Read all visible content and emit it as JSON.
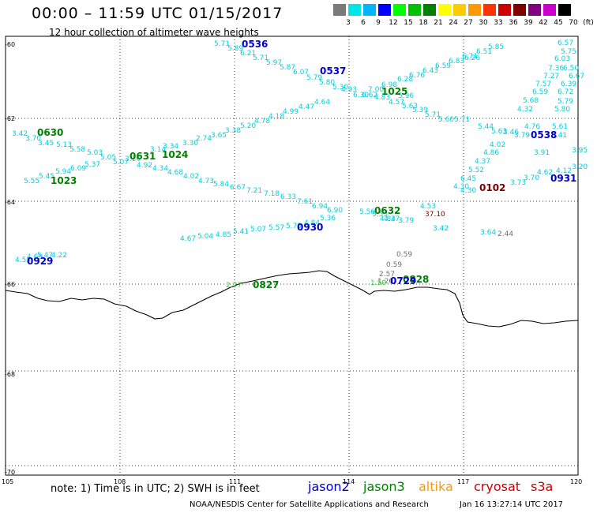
{
  "header": {
    "title": "00:00 – 11:59 UTC 01/15/2017",
    "subtitle": "12 hour collection of altimeter wave heights"
  },
  "colorscale": {
    "ticks": [
      "3",
      "6",
      "9",
      "12",
      "15",
      "18",
      "21",
      "24",
      "27",
      "30",
      "33",
      "36",
      "39",
      "42",
      "45",
      "70",
      "(ft)"
    ],
    "colors": [
      "#7a7a7a",
      "#00e5e5",
      "#00b4ff",
      "#0000ff",
      "#00ff00",
      "#00c000",
      "#008000",
      "#ffff00",
      "#ffcc00",
      "#ff9900",
      "#ff3300",
      "#cc0000",
      "#800000",
      "#800080",
      "#cc00cc",
      "#000000"
    ]
  },
  "axes": {
    "lat_labels": [
      "-60",
      "-62",
      "-64",
      "-66",
      "-68",
      "-70"
    ],
    "lon_labels": [
      "105",
      "108",
      "111",
      "114",
      "117",
      "120"
    ]
  },
  "footer": {
    "note": "note: 1) Time is in UTC; 2) SWH is in feet",
    "sats": [
      {
        "name": "jason2",
        "color": "#0000cc"
      },
      {
        "name": "jason3",
        "color": "#008000"
      },
      {
        "name": "altika",
        "color": "#ff9900"
      },
      {
        "name": "cryosat",
        "color": "#cc0000"
      },
      {
        "name": "s3a",
        "color": "#cc0000"
      }
    ],
    "credit": "NOAA/NESDIS Center for Satellite Applications and Research",
    "timestamp": "Jan 16 13:27:14 UTC 2017"
  },
  "passes": [
    {
      "id": "0536",
      "color": "#0000cc"
    },
    {
      "id": "0537",
      "color": "#0000cc"
    },
    {
      "id": "1025",
      "color": "#008000"
    },
    {
      "id": "0630",
      "color": "#008000"
    },
    {
      "id": "0631",
      "color": "#008000"
    },
    {
      "id": "1024",
      "color": "#008000"
    },
    {
      "id": "1023",
      "color": "#008000"
    },
    {
      "id": "0538",
      "color": "#0000cc"
    },
    {
      "id": "0102",
      "color": "#800000"
    },
    {
      "id": "0931",
      "color": "#0000cc"
    },
    {
      "id": "0632",
      "color": "#008000"
    },
    {
      "id": "0930",
      "color": "#0000cc"
    },
    {
      "id": "0929",
      "color": "#0000cc"
    },
    {
      "id": "0827",
      "color": "#008000"
    },
    {
      "id": "0828",
      "color": "#008000"
    },
    {
      "id": "0729",
      "color": "#0000cc"
    }
  ],
  "observations": {
    "cyan": [
      "5.71",
      "5.89",
      "6.21",
      "5.71",
      "5.97",
      "5.87",
      "6.07",
      "5.79",
      "5.80",
      "5.30",
      "6.28",
      "6.76",
      "6.43",
      "6.59",
      "6.83",
      "6.71",
      "6.51",
      "5.85",
      "6.26",
      "6.57",
      "5.75",
      "6.03",
      "7.36",
      "6.50",
      "7.27",
      "6.67",
      "7.57",
      "6.59",
      "6.72",
      "6.39",
      "5.68",
      "5.79",
      "4.32",
      "5.80",
      "5.61",
      "4.76",
      "5.41",
      "3.46",
      "3.79",
      "4.02",
      "3.91",
      "4.86",
      "3.95",
      "4.37",
      "3.20",
      "5.52",
      "4.12",
      "6.45",
      "4.62",
      "4.30",
      "4.30",
      "3.73",
      "3.70",
      "4.93",
      "7.00",
      "6.98",
      "4.83",
      "6.30",
      "6.62",
      "5.96",
      "4.57",
      "5.63",
      "5.39",
      "5.71",
      "5.60",
      "5.71",
      "5.44",
      "5.63",
      "3.42",
      "3.70",
      "3.45",
      "5.13",
      "5.58",
      "5.03",
      "5.05",
      "5.07",
      "3.16",
      "3.34",
      "3.30",
      "3.14",
      "2.74",
      "3.65",
      "3.38",
      "5.20",
      "4.78",
      "4.18",
      "4.99",
      "4.47",
      "4.64",
      "5.55",
      "5.45",
      "5.94",
      "6.09",
      "5.37",
      "4.92",
      "4.34",
      "4.68",
      "4.02",
      "4.73",
      "5.84",
      "6.67",
      "7.21",
      "7.18",
      "6.33",
      "7.61",
      "6.94",
      "6.90",
      "5.56",
      "5.53",
      "4.84",
      "4.37",
      "3.79",
      "4.53",
      "3.42",
      "4.67",
      "5.04",
      "4.85",
      "5.41",
      "5.07",
      "5.57",
      "5.75",
      "5.36",
      "4.84",
      "4.55",
      "4.69",
      "5.47",
      "4.22",
      "3.64"
    ],
    "gray": [
      "2.44",
      "0.59",
      "0.59",
      "2.57",
      "1.20"
    ],
    "green": [
      "2.27",
      "1.50"
    ],
    "maroon": [
      "37.10"
    ]
  }
}
